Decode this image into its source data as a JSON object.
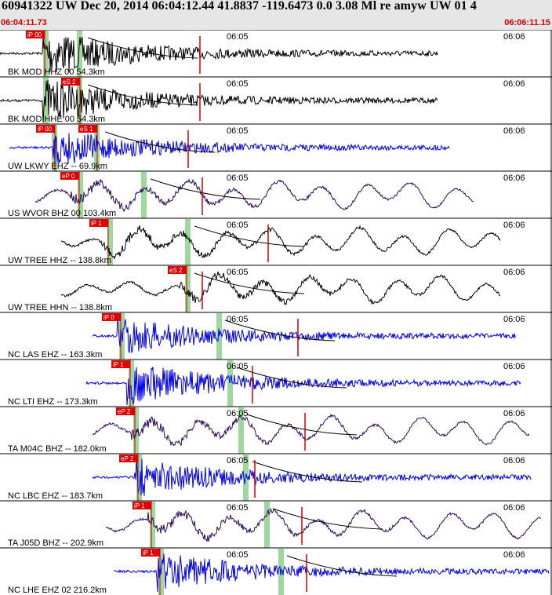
{
  "header": {
    "title": "60941322 UW Dec 20, 2014 06:04:12.44   41.8837 -119.6473  0.0 3.08 Ml re amyw UW 01    4",
    "time_start": "06:04:11.73",
    "time_end": "06:06:11.15"
  },
  "colors": {
    "trace_black": "#000000",
    "trace_blue": "#0000ee",
    "trace_purple": "#2a0a5a",
    "pick_box": "#e00000",
    "pick_line": "#d00000",
    "green_band": "#9fd89f",
    "header_bg": "#e6e6e6"
  },
  "tick_labels": {
    "t1": "06:05",
    "t2": "06:06"
  },
  "traces": [
    {
      "label": "BK MOD HHZ 00 54.3km",
      "color": "#000000",
      "pick": "iP 00",
      "pick2": ""
    },
    {
      "label": "BK MOD HHE 00 54.3km",
      "color": "#000000",
      "pick": "",
      "pick2": "eS 2"
    },
    {
      "label": "UW LKWY EHZ -- 69.9km",
      "color": "#0000ee",
      "pick": "iP 00",
      "pick2": "eS 1"
    },
    {
      "label": "US WVOR BHZ 00 103.4km",
      "color": "#2a0a5a",
      "pick": "eP 0",
      "pick2": ""
    },
    {
      "label": "UW TREE HHZ -- 138.8km",
      "color": "#000000",
      "pick": "iP 1",
      "pick2": ""
    },
    {
      "label": "UW TREE HHN -- 138.8km",
      "color": "#000000",
      "pick": "eS 2",
      "pick2": ""
    },
    {
      "label": "NC LAS EHZ -- 163.3km",
      "color": "#0000ee",
      "pick": "iP 0",
      "pick2": ""
    },
    {
      "label": "NC LTI EHZ -- 173.3km",
      "color": "#0000ee",
      "pick": "iP 1",
      "pick2": ""
    },
    {
      "label": "TA M04C BHZ -- 182.0km",
      "color": "#2a0a5a",
      "pick": "eP 2",
      "pick2": ""
    },
    {
      "label": "NC LBC EHZ -- 183.7km",
      "color": "#0000ee",
      "pick": "eP 2",
      "pick2": ""
    },
    {
      "label": "TA J05D BHZ -- 202.9km",
      "color": "#2a0a5a",
      "pick": "iP 1",
      "pick2": ""
    },
    {
      "label": "NC LHE EHZ 02 216.2km",
      "color": "#0000ee",
      "pick": "iP 1",
      "pick2": ""
    }
  ]
}
